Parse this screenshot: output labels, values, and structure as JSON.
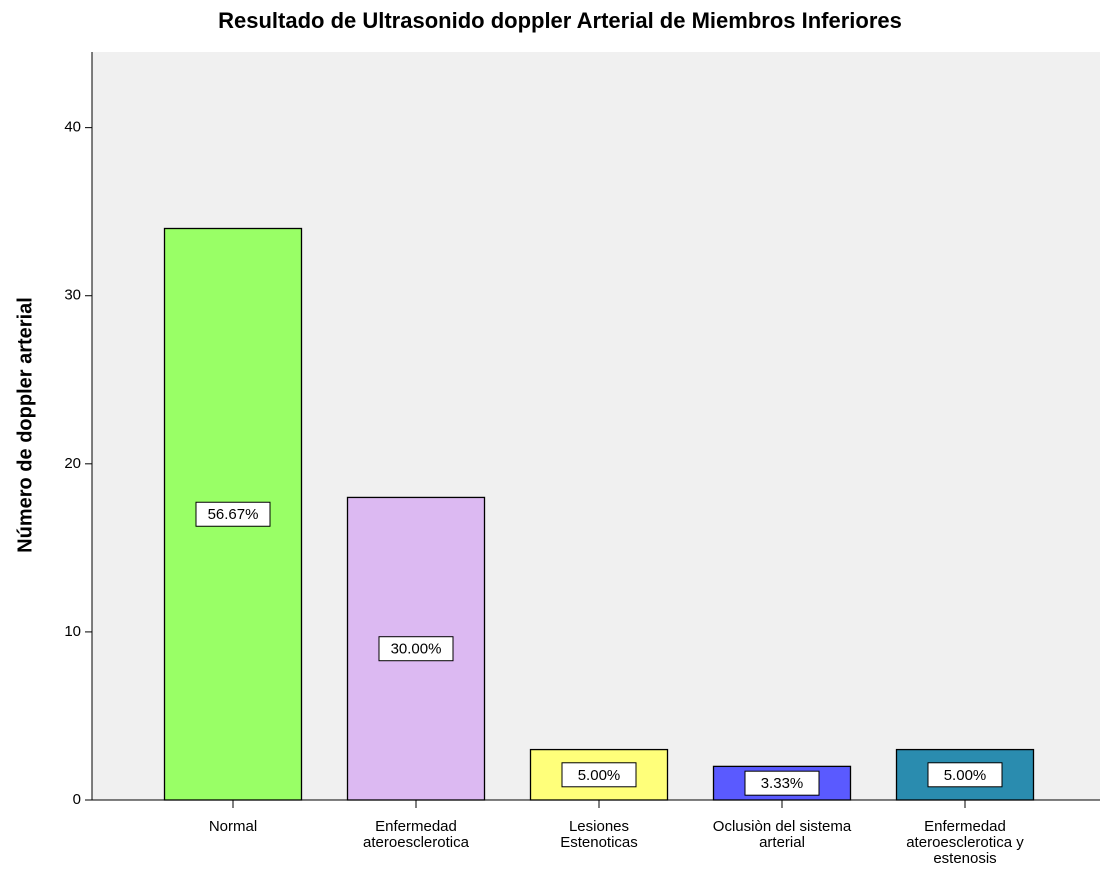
{
  "chart_data": {
    "type": "bar",
    "title": "Resultado de Ultrasonido doppler Arterial de Miembros Inferiores",
    "y_label": "Número de doppler arterial",
    "categories": [
      [
        "Normal"
      ],
      [
        "Enfermedad",
        "ateroesclerotica"
      ],
      [
        "Lesiones",
        "Estenoticas"
      ],
      [
        "Oclusiòn del sistema",
        "arterial"
      ],
      [
        "Enfermedad",
        "ateroesclerotica y",
        "estenosis"
      ]
    ],
    "values": [
      34,
      18,
      3,
      2,
      3
    ],
    "colors": [
      "#99ff66",
      "#dcb9f2",
      "#ffff7a",
      "#5a5aff",
      "#2a8caf"
    ],
    "shares": {
      "values": [
        56.67,
        30.0,
        5.0,
        3.33,
        5.0
      ],
      "value_labels": [
        "56.67%",
        "30.00%",
        "5.00%",
        "3.33%",
        "5.00%"
      ]
    },
    "ylim": [
      0,
      44.5
    ],
    "yticks": [
      0,
      10,
      20,
      30,
      40
    ]
  }
}
